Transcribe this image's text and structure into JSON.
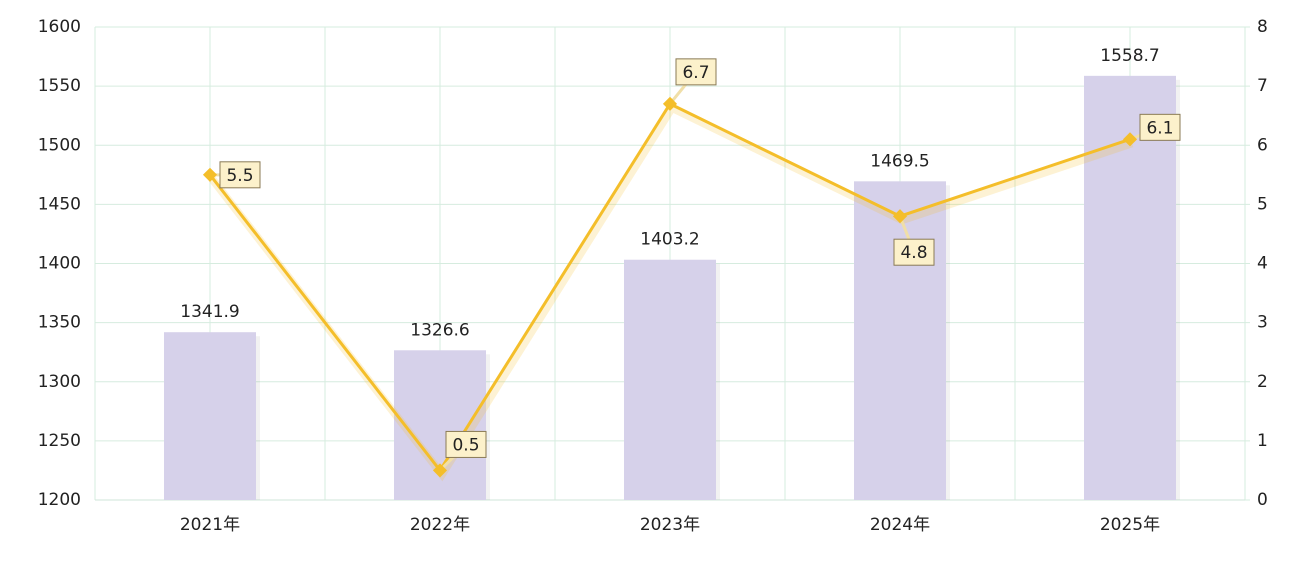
{
  "chart_data": {
    "type": "bar-line",
    "categories": [
      "2021年",
      "2022年",
      "2023年",
      "2024年",
      "2025年"
    ],
    "series": [
      {
        "type": "bar",
        "color": "#d6d1ea",
        "values": [
          1341.9,
          1326.6,
          1403.2,
          1469.5,
          1558.7
        ]
      },
      {
        "type": "line",
        "axis": "y2",
        "color": "#f4be2a",
        "values": [
          5.5,
          0.5,
          6.7,
          4.8,
          6.1
        ]
      }
    ],
    "ylim": [
      1200,
      1600
    ],
    "yticks": [
      1200,
      1250,
      1300,
      1350,
      1400,
      1450,
      1500,
      1550,
      1600
    ],
    "y2lim": [
      0,
      8
    ],
    "y2ticks": [
      0,
      1,
      2,
      3,
      4,
      5,
      6,
      7,
      8
    ],
    "grid": true
  }
}
